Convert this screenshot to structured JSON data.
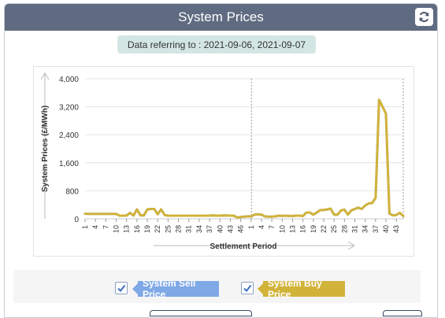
{
  "header": {
    "title": "System Prices",
    "refresh_icon": "refresh-icon"
  },
  "date_badge": {
    "text": "Data referring to : 2021-09-06, 2021-09-07"
  },
  "legend": {
    "items": [
      {
        "label": "System Sell Price",
        "checked": true,
        "color": "#7fa8e6"
      },
      {
        "label": "System Buy Price",
        "checked": true,
        "color": "#d1b33a"
      }
    ]
  },
  "chart_data": {
    "type": "line",
    "ylabel": "System Prices (£/MWh)",
    "xlabel": "Settlement Period",
    "ylim": [
      0,
      4000
    ],
    "y_ticks": [
      "0",
      "800",
      "1,600",
      "2,400",
      "3,200",
      "4,000"
    ],
    "x_tick_labels": [
      "1",
      "4",
      "7",
      "10",
      "13",
      "16",
      "19",
      "22",
      "25",
      "28",
      "31",
      "34",
      "37",
      "40",
      "43",
      "46",
      "1",
      "4",
      "7",
      "10",
      "13",
      "16",
      "19",
      "22",
      "25",
      "28",
      "31",
      "34",
      "37",
      "40",
      "43"
    ],
    "x_tick_index": [
      0,
      3,
      6,
      9,
      12,
      15,
      18,
      21,
      24,
      27,
      30,
      33,
      36,
      39,
      42,
      45,
      48,
      51,
      54,
      57,
      60,
      63,
      66,
      69,
      72,
      75,
      78,
      81,
      84,
      87,
      90
    ],
    "day_separator_index": 48,
    "series": [
      {
        "name": "System Sell Price",
        "color": "#7fa8e6",
        "values": [
          145,
          140,
          140,
          140,
          140,
          140,
          140,
          140,
          140,
          140,
          90,
          90,
          95,
          170,
          95,
          270,
          100,
          100,
          270,
          280,
          280,
          130,
          270,
          110,
          90,
          90,
          90,
          90,
          90,
          90,
          90,
          90,
          90,
          90,
          90,
          90,
          90,
          100,
          90,
          90,
          95,
          95,
          90,
          90,
          40,
          50,
          60,
          70,
          70,
          120,
          130,
          120,
          70,
          60,
          60,
          70,
          90,
          80,
          90,
          80,
          80,
          90,
          90,
          80,
          180,
          180,
          120,
          180,
          250,
          250,
          270,
          290,
          120,
          120,
          240,
          260,
          120,
          240,
          280,
          320,
          280,
          380,
          440,
          450,
          600,
          3400,
          3200,
          3000,
          150,
          100,
          110,
          170,
          80
        ]
      },
      {
        "name": "System Buy Price",
        "color": "#d1b33a",
        "values": [
          145,
          140,
          140,
          140,
          140,
          140,
          140,
          140,
          140,
          140,
          90,
          90,
          95,
          170,
          95,
          270,
          100,
          100,
          270,
          280,
          280,
          130,
          270,
          110,
          90,
          90,
          90,
          90,
          90,
          90,
          90,
          90,
          90,
          90,
          90,
          90,
          90,
          100,
          90,
          90,
          95,
          95,
          90,
          90,
          40,
          50,
          60,
          70,
          70,
          120,
          130,
          120,
          70,
          60,
          60,
          70,
          90,
          80,
          90,
          80,
          80,
          90,
          90,
          80,
          180,
          180,
          120,
          180,
          250,
          250,
          270,
          290,
          120,
          120,
          240,
          260,
          120,
          240,
          280,
          320,
          280,
          380,
          440,
          450,
          600,
          3400,
          3200,
          3000,
          150,
          100,
          110,
          170,
          80
        ]
      }
    ]
  }
}
